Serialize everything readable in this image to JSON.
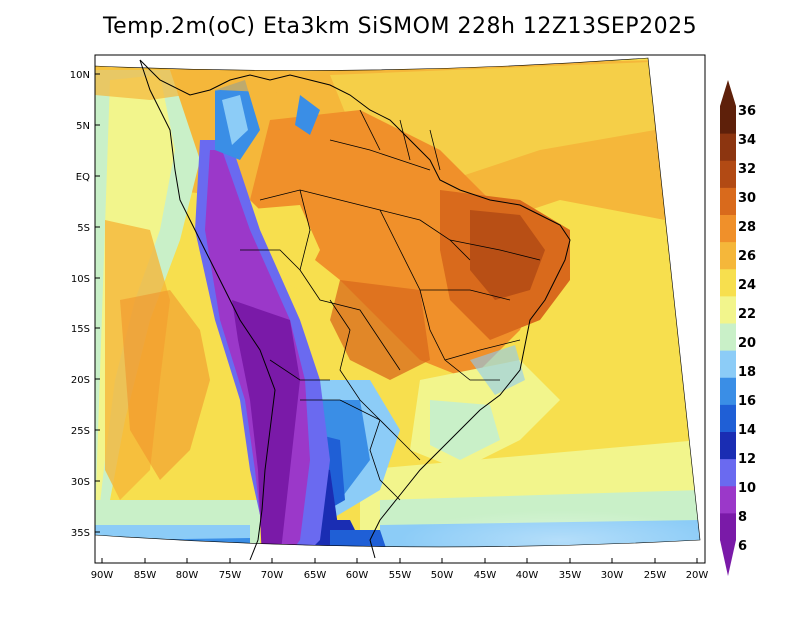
{
  "title": "Temp.2m(oC) Eta3km SiSMOM 228h 12Z13SEP2025",
  "lat_labels": [
    "10N",
    "5N",
    "EQ",
    "5S",
    "10S",
    "15S",
    "20S",
    "25S",
    "30S",
    "35S"
  ],
  "lon_labels": [
    "90W",
    "85W",
    "80W",
    "75W",
    "70W",
    "65W",
    "60W",
    "55W",
    "50W",
    "45W",
    "40W",
    "35W",
    "30W",
    "25W",
    "20W"
  ],
  "colorbar": {
    "labels": [
      "6",
      "8",
      "10",
      "12",
      "14",
      "16",
      "18",
      "20",
      "22",
      "24",
      "26",
      "28",
      "30",
      "32",
      "34",
      "36"
    ],
    "colors": [
      "#7a1aa8",
      "#9b38c9",
      "#6a6af0",
      "#1a2db3",
      "#1f5fd6",
      "#3a8ee6",
      "#8cccf7",
      "#c9f0c8",
      "#f2f58c",
      "#f7df4e",
      "#f5b73a",
      "#f0902a",
      "#d96a1c",
      "#b24a14",
      "#8c3510",
      "#5e200a"
    ]
  },
  "chart_data": {
    "type": "heatmap",
    "title": "Temp.2m(oC) Eta3km SiSMOM 228h 12Z13SEP2025",
    "variable": "Temp.2m",
    "units": "oC",
    "lon_range": [
      "90W",
      "20W"
    ],
    "lat_range": [
      "38S",
      "12N"
    ],
    "colorbar_ticks": [
      6,
      8,
      10,
      12,
      14,
      16,
      18,
      20,
      22,
      24,
      26,
      28,
      30,
      32,
      34,
      36
    ]
  }
}
